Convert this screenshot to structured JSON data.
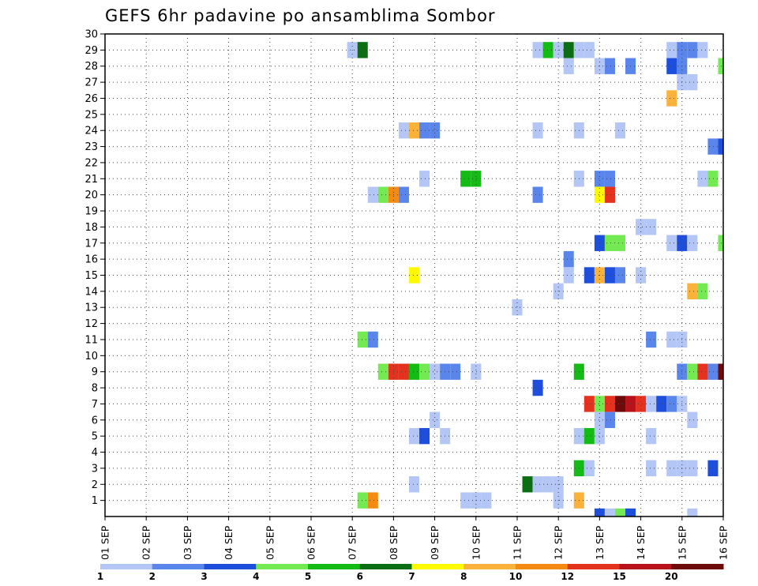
{
  "chart_data": {
    "type": "heatmap",
    "title": "GEFS 6hr padavine po ansamblima Sombor",
    "x_ticks": [
      "01 SEP",
      "02 SEP",
      "03 SEP",
      "04 SEP",
      "05 SEP",
      "06 SEP",
      "07 SEP",
      "08 SEP",
      "09 SEP",
      "10 SEP",
      "11 SEP",
      "12 SEP",
      "13 SEP",
      "14 SEP",
      "15 SEP",
      "16 SEP"
    ],
    "y_ticks": [
      "1",
      "2",
      "3",
      "4",
      "5",
      "6",
      "7",
      "8",
      "9",
      "10",
      "11",
      "12",
      "13",
      "14",
      "15",
      "16",
      "17",
      "18",
      "19",
      "20",
      "21",
      "22",
      "23",
      "24",
      "25",
      "26",
      "27",
      "28",
      "29",
      "30"
    ],
    "xlim_days": [
      1,
      16
    ],
    "ylim": [
      0,
      30
    ],
    "grid": true,
    "colorbar": {
      "labels": [
        "1",
        "2",
        "3",
        "4",
        "5",
        "6",
        "7",
        "8",
        "10",
        "12",
        "15",
        "20"
      ],
      "colors": [
        "#b3c6f5",
        "#5a86ec",
        "#1e4fdc",
        "#74ea52",
        "#14bb14",
        "#0b6e12",
        "#fdfa00",
        "#fbb23a",
        "#f58a12",
        "#e4321e",
        "#b8131a",
        "#6d0a0a"
      ]
    },
    "cells": [
      {
        "day": 7.0,
        "member": 29,
        "category": 1
      },
      {
        "day": 7.25,
        "member": 29,
        "category": 6
      },
      {
        "day": 11.5,
        "member": 29,
        "category": 1
      },
      {
        "day": 11.75,
        "member": 29,
        "category": 5
      },
      {
        "day": 12.0,
        "member": 29,
        "category": 1
      },
      {
        "day": 12.25,
        "member": 29,
        "category": 6
      },
      {
        "day": 12.5,
        "member": 29,
        "category": 1
      },
      {
        "day": 12.75,
        "member": 29,
        "category": 1
      },
      {
        "day": 14.75,
        "member": 29,
        "category": 1
      },
      {
        "day": 15.0,
        "member": 29,
        "category": 2
      },
      {
        "day": 15.25,
        "member": 29,
        "category": 2
      },
      {
        "day": 15.5,
        "member": 29,
        "category": 1
      },
      {
        "day": 12.25,
        "member": 28,
        "category": 1
      },
      {
        "day": 13.0,
        "member": 28,
        "category": 1
      },
      {
        "day": 13.25,
        "member": 28,
        "category": 2
      },
      {
        "day": 13.75,
        "member": 28,
        "category": 2
      },
      {
        "day": 14.75,
        "member": 28,
        "category": 3
      },
      {
        "day": 15.0,
        "member": 28,
        "category": 2
      },
      {
        "day": 16.0,
        "member": 28,
        "category": 4
      },
      {
        "day": 15.0,
        "member": 27,
        "category": 1
      },
      {
        "day": 15.25,
        "member": 27,
        "category": 1
      },
      {
        "day": 14.75,
        "member": 26,
        "category": 8
      },
      {
        "day": 8.25,
        "member": 24,
        "category": 1
      },
      {
        "day": 8.5,
        "member": 24,
        "category": 8
      },
      {
        "day": 8.75,
        "member": 24,
        "category": 2
      },
      {
        "day": 9.0,
        "member": 24,
        "category": 2
      },
      {
        "day": 11.5,
        "member": 24,
        "category": 1
      },
      {
        "day": 12.5,
        "member": 24,
        "category": 1
      },
      {
        "day": 13.5,
        "member": 24,
        "category": 1
      },
      {
        "day": 15.75,
        "member": 23,
        "category": 2
      },
      {
        "day": 16.0,
        "member": 23,
        "category": 3
      },
      {
        "day": 8.75,
        "member": 21,
        "category": 1
      },
      {
        "day": 9.75,
        "member": 21,
        "category": 5
      },
      {
        "day": 10.0,
        "member": 21,
        "category": 5
      },
      {
        "day": 12.5,
        "member": 21,
        "category": 1
      },
      {
        "day": 13.0,
        "member": 21,
        "category": 2
      },
      {
        "day": 13.25,
        "member": 21,
        "category": 2
      },
      {
        "day": 15.5,
        "member": 21,
        "category": 1
      },
      {
        "day": 15.75,
        "member": 21,
        "category": 4
      },
      {
        "day": 7.5,
        "member": 20,
        "category": 1
      },
      {
        "day": 7.75,
        "member": 20,
        "category": 4
      },
      {
        "day": 8.0,
        "member": 20,
        "category": 9
      },
      {
        "day": 8.25,
        "member": 20,
        "category": 2
      },
      {
        "day": 11.5,
        "member": 20,
        "category": 2
      },
      {
        "day": 13.0,
        "member": 20,
        "category": 7
      },
      {
        "day": 13.25,
        "member": 20,
        "category": 10
      },
      {
        "day": 14.0,
        "member": 18,
        "category": 1
      },
      {
        "day": 14.25,
        "member": 18,
        "category": 1
      },
      {
        "day": 13.0,
        "member": 17,
        "category": 3
      },
      {
        "day": 13.25,
        "member": 17,
        "category": 4
      },
      {
        "day": 13.5,
        "member": 17,
        "category": 4
      },
      {
        "day": 14.75,
        "member": 17,
        "category": 1
      },
      {
        "day": 15.0,
        "member": 17,
        "category": 3
      },
      {
        "day": 15.25,
        "member": 17,
        "category": 1
      },
      {
        "day": 16.0,
        "member": 17,
        "category": 4
      },
      {
        "day": 12.25,
        "member": 16,
        "category": 2
      },
      {
        "day": 8.5,
        "member": 15,
        "category": 7
      },
      {
        "day": 12.25,
        "member": 15,
        "category": 1
      },
      {
        "day": 12.75,
        "member": 15,
        "category": 3
      },
      {
        "day": 13.0,
        "member": 15,
        "category": 8
      },
      {
        "day": 13.25,
        "member": 15,
        "category": 3
      },
      {
        "day": 13.5,
        "member": 15,
        "category": 2
      },
      {
        "day": 14.0,
        "member": 15,
        "category": 1
      },
      {
        "day": 12.0,
        "member": 14,
        "category": 1
      },
      {
        "day": 15.25,
        "member": 14,
        "category": 8
      },
      {
        "day": 15.5,
        "member": 14,
        "category": 4
      },
      {
        "day": 11.0,
        "member": 13,
        "category": 1
      },
      {
        "day": 7.25,
        "member": 11,
        "category": 4
      },
      {
        "day": 7.5,
        "member": 11,
        "category": 2
      },
      {
        "day": 14.25,
        "member": 11,
        "category": 2
      },
      {
        "day": 14.75,
        "member": 11,
        "category": 1
      },
      {
        "day": 15.0,
        "member": 11,
        "category": 1
      },
      {
        "day": 7.75,
        "member": 9,
        "category": 4
      },
      {
        "day": 8.0,
        "member": 9,
        "category": 10
      },
      {
        "day": 8.25,
        "member": 9,
        "category": 10
      },
      {
        "day": 8.5,
        "member": 9,
        "category": 5
      },
      {
        "day": 8.75,
        "member": 9,
        "category": 4
      },
      {
        "day": 9.0,
        "member": 9,
        "category": 1
      },
      {
        "day": 9.25,
        "member": 9,
        "category": 2
      },
      {
        "day": 9.5,
        "member": 9,
        "category": 2
      },
      {
        "day": 10.0,
        "member": 9,
        "category": 1
      },
      {
        "day": 12.5,
        "member": 9,
        "category": 5
      },
      {
        "day": 15.0,
        "member": 9,
        "category": 2
      },
      {
        "day": 15.25,
        "member": 9,
        "category": 4
      },
      {
        "day": 15.5,
        "member": 9,
        "category": 10
      },
      {
        "day": 15.75,
        "member": 9,
        "category": 2
      },
      {
        "day": 16.0,
        "member": 9,
        "category": 12
      },
      {
        "day": 11.5,
        "member": 8,
        "category": 3
      },
      {
        "day": 12.75,
        "member": 7,
        "category": 10
      },
      {
        "day": 13.0,
        "member": 7,
        "category": 4
      },
      {
        "day": 13.25,
        "member": 7,
        "category": 10
      },
      {
        "day": 13.5,
        "member": 7,
        "category": 12
      },
      {
        "day": 13.75,
        "member": 7,
        "category": 11
      },
      {
        "day": 14.0,
        "member": 7,
        "category": 10
      },
      {
        "day": 14.25,
        "member": 7,
        "category": 1
      },
      {
        "day": 14.5,
        "member": 7,
        "category": 3
      },
      {
        "day": 14.75,
        "member": 7,
        "category": 2
      },
      {
        "day": 15.0,
        "member": 7,
        "category": 1
      },
      {
        "day": 13.0,
        "member": 6,
        "category": 1
      },
      {
        "day": 13.25,
        "member": 6,
        "category": 2
      },
      {
        "day": 15.25,
        "member": 6,
        "category": 1
      },
      {
        "day": 9.0,
        "member": 6,
        "category": 1
      },
      {
        "day": 8.5,
        "member": 5,
        "category": 1
      },
      {
        "day": 8.75,
        "member": 5,
        "category": 3
      },
      {
        "day": 9.25,
        "member": 5,
        "category": 1
      },
      {
        "day": 12.5,
        "member": 5,
        "category": 1
      },
      {
        "day": 12.75,
        "member": 5,
        "category": 5
      },
      {
        "day": 13.0,
        "member": 5,
        "category": 1
      },
      {
        "day": 14.25,
        "member": 5,
        "category": 1
      },
      {
        "day": 12.5,
        "member": 3,
        "category": 5
      },
      {
        "day": 12.75,
        "member": 3,
        "category": 1
      },
      {
        "day": 14.25,
        "member": 3,
        "category": 1
      },
      {
        "day": 14.75,
        "member": 3,
        "category": 1
      },
      {
        "day": 15.0,
        "member": 3,
        "category": 1
      },
      {
        "day": 15.25,
        "member": 3,
        "category": 1
      },
      {
        "day": 15.75,
        "member": 3,
        "category": 3
      },
      {
        "day": 8.5,
        "member": 2,
        "category": 1
      },
      {
        "day": 11.25,
        "member": 2,
        "category": 6
      },
      {
        "day": 11.5,
        "member": 2,
        "category": 1
      },
      {
        "day": 11.75,
        "member": 2,
        "category": 1
      },
      {
        "day": 12.0,
        "member": 2,
        "category": 1
      },
      {
        "day": 7.25,
        "member": 1,
        "category": 4
      },
      {
        "day": 7.5,
        "member": 1,
        "category": 9
      },
      {
        "day": 9.75,
        "member": 1,
        "category": 1
      },
      {
        "day": 10.0,
        "member": 1,
        "category": 1
      },
      {
        "day": 10.25,
        "member": 1,
        "category": 1
      },
      {
        "day": 12.0,
        "member": 1,
        "category": 1
      },
      {
        "day": 12.5,
        "member": 1,
        "category": 8
      },
      {
        "day": 13.0,
        "member": 0,
        "category": 3
      },
      {
        "day": 13.25,
        "member": 0,
        "category": 1
      },
      {
        "day": 13.5,
        "member": 0,
        "category": 4
      },
      {
        "day": 13.75,
        "member": 0,
        "category": 3
      },
      {
        "day": 15.25,
        "member": 0,
        "category": 1
      }
    ]
  }
}
